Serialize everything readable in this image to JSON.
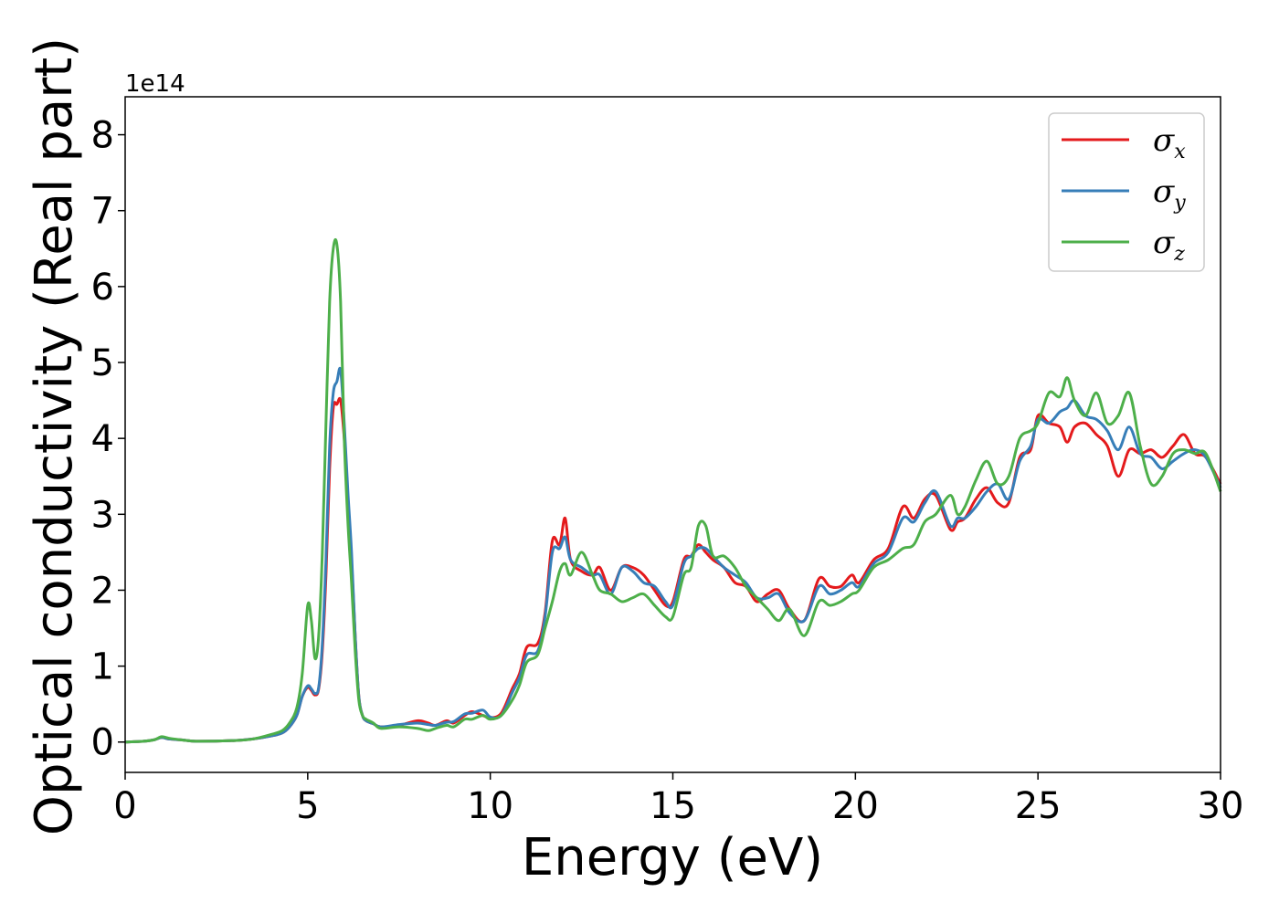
{
  "chart_data": {
    "type": "line",
    "xlabel": "Energy (eV)",
    "ylabel": "Optical conductivity (Real part)",
    "y_offset_label": "1e14",
    "xlim": [
      0,
      30
    ],
    "ylim": [
      -0.4,
      8.5
    ],
    "xticks": [
      0,
      5,
      10,
      15,
      20,
      25,
      30
    ],
    "xtick_labels": [
      "0",
      "5",
      "10",
      "15",
      "20",
      "25",
      "30"
    ],
    "yticks": [
      0,
      1,
      2,
      3,
      4,
      5,
      6,
      7,
      8
    ],
    "ytick_labels": [
      "0",
      "1",
      "2",
      "3",
      "4",
      "5",
      "6",
      "7",
      "8"
    ],
    "grid": false,
    "legend_position": "top-right",
    "series": [
      {
        "name": "σ",
        "subscript": "x",
        "color": "#e41a1c",
        "x": [
          0,
          0.5,
          0.8,
          1.0,
          1.2,
          1.5,
          1.7,
          2.0,
          3.0,
          3.5,
          4.0,
          4.3,
          4.5,
          4.7,
          4.85,
          5.0,
          5.1,
          5.2,
          5.3,
          5.4,
          5.5,
          5.6,
          5.7,
          5.8,
          5.9,
          6.0,
          6.1,
          6.2,
          6.3,
          6.4,
          6.5,
          6.6,
          6.8,
          7.0,
          7.5,
          8.0,
          8.3,
          8.5,
          8.8,
          9.0,
          9.3,
          9.5,
          9.8,
          10.0,
          10.3,
          10.6,
          10.8,
          11.0,
          11.3,
          11.5,
          11.7,
          11.9,
          12.05,
          12.2,
          12.5,
          12.8,
          13.0,
          13.3,
          13.6,
          13.9,
          14.2,
          14.5,
          14.8,
          15.0,
          15.3,
          15.5,
          15.7,
          15.9,
          16.1,
          16.4,
          16.7,
          17.0,
          17.3,
          17.6,
          17.9,
          18.2,
          18.6,
          19.0,
          19.3,
          19.6,
          19.9,
          20.1,
          20.5,
          20.9,
          21.3,
          21.6,
          21.9,
          22.2,
          22.6,
          22.8,
          23.0,
          23.3,
          23.6,
          23.9,
          24.2,
          24.5,
          24.8,
          25.0,
          25.3,
          25.6,
          25.8,
          26.0,
          26.3,
          26.6,
          26.9,
          27.2,
          27.5,
          27.8,
          28.1,
          28.4,
          28.7,
          29.0,
          29.3,
          29.6,
          30.0
        ],
        "values": [
          0,
          0.01,
          0.03,
          0.06,
          0.04,
          0.03,
          0.02,
          0.01,
          0.02,
          0.04,
          0.08,
          0.12,
          0.2,
          0.35,
          0.6,
          0.72,
          0.68,
          0.62,
          0.7,
          1.2,
          2.2,
          3.6,
          4.4,
          4.45,
          4.5,
          4.0,
          3.2,
          2.4,
          1.4,
          0.6,
          0.35,
          0.28,
          0.24,
          0.2,
          0.22,
          0.28,
          0.25,
          0.22,
          0.28,
          0.25,
          0.35,
          0.4,
          0.35,
          0.32,
          0.38,
          0.7,
          0.9,
          1.25,
          1.3,
          1.7,
          2.65,
          2.6,
          2.95,
          2.4,
          2.25,
          2.2,
          2.3,
          2.0,
          2.3,
          2.3,
          2.2,
          2.0,
          1.8,
          1.85,
          2.4,
          2.45,
          2.6,
          2.5,
          2.4,
          2.3,
          2.1,
          2.05,
          1.85,
          1.95,
          2.0,
          1.75,
          1.6,
          2.15,
          2.05,
          2.05,
          2.2,
          2.1,
          2.4,
          2.55,
          3.1,
          2.95,
          3.2,
          3.25,
          2.8,
          2.9,
          2.95,
          3.2,
          3.35,
          3.15,
          3.15,
          3.75,
          3.85,
          4.3,
          4.2,
          4.15,
          3.95,
          4.15,
          4.2,
          4.05,
          3.9,
          3.5,
          3.85,
          3.8,
          3.85,
          3.75,
          3.9,
          4.05,
          3.8,
          3.75,
          3.4
        ]
      },
      {
        "name": "σ",
        "subscript": "y",
        "color": "#377eb8",
        "x": [
          0,
          0.5,
          0.8,
          1.0,
          1.2,
          1.5,
          1.7,
          2.0,
          3.0,
          3.5,
          4.0,
          4.3,
          4.5,
          4.7,
          4.85,
          5.0,
          5.1,
          5.2,
          5.3,
          5.4,
          5.5,
          5.6,
          5.7,
          5.8,
          5.9,
          6.0,
          6.1,
          6.2,
          6.3,
          6.4,
          6.5,
          6.6,
          6.8,
          7.0,
          7.5,
          8.0,
          8.3,
          8.5,
          8.8,
          9.0,
          9.3,
          9.5,
          9.8,
          10.0,
          10.3,
          10.6,
          10.8,
          11.0,
          11.3,
          11.5,
          11.7,
          11.9,
          12.05,
          12.2,
          12.5,
          12.8,
          13.0,
          13.3,
          13.6,
          13.9,
          14.2,
          14.5,
          14.8,
          15.0,
          15.3,
          15.5,
          15.7,
          15.9,
          16.1,
          16.4,
          16.7,
          17.0,
          17.3,
          17.6,
          17.9,
          18.2,
          18.6,
          19.0,
          19.3,
          19.6,
          19.9,
          20.1,
          20.5,
          20.9,
          21.3,
          21.6,
          21.9,
          22.2,
          22.6,
          22.8,
          23.0,
          23.3,
          23.6,
          23.9,
          24.2,
          24.5,
          24.8,
          25.0,
          25.3,
          25.6,
          25.8,
          26.0,
          26.3,
          26.6,
          26.9,
          27.2,
          27.5,
          27.8,
          28.1,
          28.4,
          28.7,
          29.0,
          29.3,
          29.6,
          30.0
        ],
        "values": [
          0,
          0.01,
          0.03,
          0.06,
          0.04,
          0.03,
          0.02,
          0.01,
          0.02,
          0.04,
          0.08,
          0.12,
          0.2,
          0.35,
          0.6,
          0.74,
          0.7,
          0.64,
          0.72,
          1.3,
          2.4,
          3.9,
          4.6,
          4.75,
          4.9,
          4.2,
          3.3,
          2.5,
          1.4,
          0.6,
          0.35,
          0.28,
          0.24,
          0.2,
          0.23,
          0.25,
          0.23,
          0.22,
          0.26,
          0.27,
          0.37,
          0.38,
          0.42,
          0.33,
          0.35,
          0.65,
          0.85,
          1.15,
          1.2,
          1.65,
          2.5,
          2.55,
          2.7,
          2.4,
          2.3,
          2.2,
          2.2,
          1.95,
          2.3,
          2.25,
          2.1,
          2.05,
          1.85,
          1.8,
          2.35,
          2.45,
          2.55,
          2.55,
          2.45,
          2.3,
          2.2,
          2.1,
          1.9,
          1.9,
          1.95,
          1.7,
          1.6,
          2.05,
          1.95,
          2.0,
          2.1,
          2.05,
          2.35,
          2.5,
          2.95,
          2.9,
          3.15,
          3.3,
          2.85,
          2.95,
          2.95,
          3.1,
          3.3,
          3.4,
          3.2,
          3.7,
          3.9,
          4.25,
          4.2,
          4.35,
          4.4,
          4.5,
          4.3,
          4.25,
          4.1,
          3.85,
          4.15,
          3.8,
          3.75,
          3.6,
          3.7,
          3.8,
          3.85,
          3.75,
          3.35
        ]
      },
      {
        "name": "σ",
        "subscript": "z",
        "color": "#4daf4a",
        "x": [
          0,
          0.5,
          0.8,
          1.0,
          1.2,
          1.5,
          1.7,
          2.0,
          3.0,
          3.5,
          4.0,
          4.3,
          4.5,
          4.7,
          4.85,
          5.0,
          5.1,
          5.2,
          5.3,
          5.4,
          5.5,
          5.6,
          5.7,
          5.8,
          5.9,
          6.0,
          6.1,
          6.2,
          6.3,
          6.4,
          6.5,
          6.6,
          6.8,
          7.0,
          7.5,
          8.0,
          8.3,
          8.5,
          8.8,
          9.0,
          9.3,
          9.5,
          9.8,
          10.0,
          10.3,
          10.6,
          10.8,
          11.0,
          11.3,
          11.5,
          11.7,
          11.9,
          12.05,
          12.2,
          12.5,
          12.8,
          13.0,
          13.3,
          13.6,
          13.9,
          14.2,
          14.5,
          14.8,
          15.0,
          15.3,
          15.5,
          15.7,
          15.9,
          16.1,
          16.4,
          16.7,
          17.0,
          17.3,
          17.6,
          17.9,
          18.2,
          18.6,
          19.0,
          19.3,
          19.6,
          19.9,
          20.1,
          20.5,
          20.9,
          21.3,
          21.6,
          21.9,
          22.2,
          22.6,
          22.8,
          23.0,
          23.3,
          23.6,
          23.9,
          24.2,
          24.5,
          24.8,
          25.0,
          25.3,
          25.6,
          25.8,
          26.0,
          26.3,
          26.6,
          26.9,
          27.2,
          27.5,
          27.8,
          28.1,
          28.4,
          28.7,
          29.0,
          29.3,
          29.6,
          30.0
        ],
        "values": [
          0,
          0.01,
          0.03,
          0.07,
          0.05,
          0.03,
          0.02,
          0.01,
          0.02,
          0.04,
          0.1,
          0.15,
          0.25,
          0.45,
          0.9,
          1.8,
          1.6,
          1.1,
          1.4,
          2.5,
          4.2,
          5.8,
          6.5,
          6.55,
          5.8,
          4.0,
          2.9,
          2.1,
          1.2,
          0.55,
          0.35,
          0.3,
          0.25,
          0.18,
          0.2,
          0.18,
          0.15,
          0.18,
          0.22,
          0.2,
          0.3,
          0.3,
          0.35,
          0.3,
          0.35,
          0.55,
          0.75,
          1.05,
          1.15,
          1.5,
          1.85,
          2.25,
          2.35,
          2.2,
          2.5,
          2.2,
          2.0,
          1.95,
          1.85,
          1.9,
          1.95,
          1.8,
          1.65,
          1.65,
          2.2,
          2.3,
          2.85,
          2.85,
          2.45,
          2.45,
          2.3,
          2.05,
          1.9,
          1.75,
          1.6,
          1.75,
          1.4,
          1.85,
          1.8,
          1.85,
          1.95,
          2.0,
          2.3,
          2.4,
          2.55,
          2.6,
          2.9,
          3.0,
          3.25,
          3.0,
          3.1,
          3.45,
          3.7,
          3.4,
          3.5,
          4.0,
          4.1,
          4.2,
          4.6,
          4.55,
          4.8,
          4.5,
          4.3,
          4.6,
          4.2,
          4.3,
          4.6,
          3.9,
          3.4,
          3.5,
          3.8,
          3.85,
          3.8,
          3.8,
          3.3
        ]
      }
    ]
  }
}
